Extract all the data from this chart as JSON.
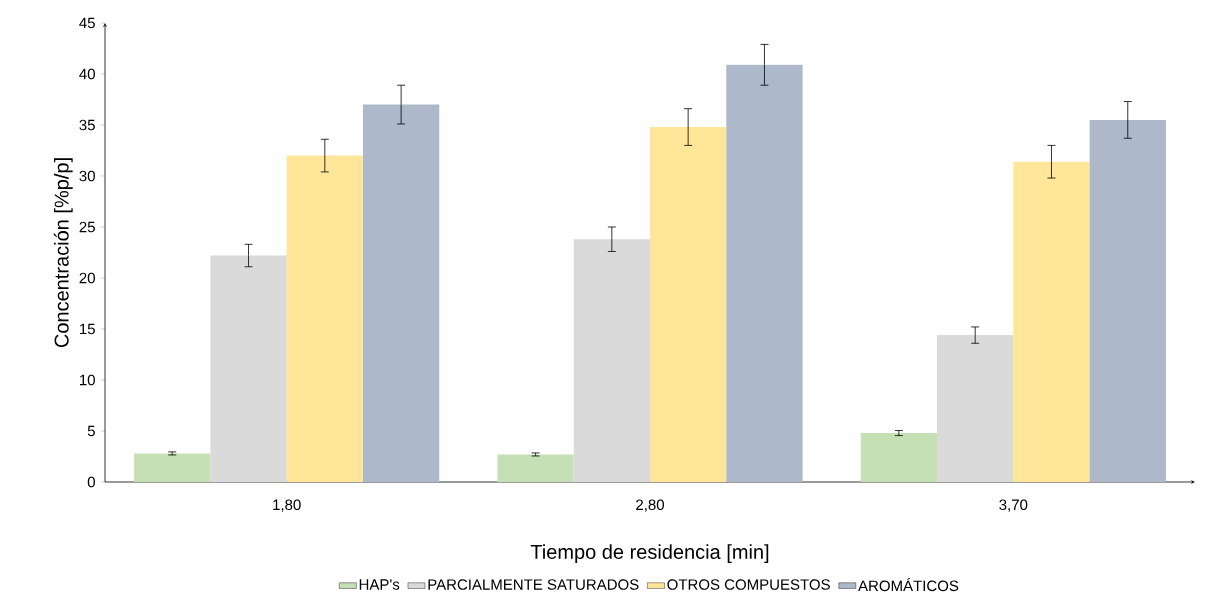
{
  "chart_data": {
    "type": "bar",
    "xlabel": "Tiempo de residencia [min]",
    "ylabel": "Concentración [%p/p]",
    "categories": [
      "1,80",
      "2,80",
      "3,70"
    ],
    "series": [
      {
        "name": "HAP's",
        "color": "#c5e0b4",
        "values": [
          2.8,
          2.7,
          4.8
        ],
        "errors": [
          0.15,
          0.15,
          0.25
        ]
      },
      {
        "name": "PARCIALMENTE SATURADOS",
        "color": "#dadada",
        "values": [
          22.2,
          23.8,
          14.4
        ],
        "errors": [
          1.1,
          1.2,
          0.8
        ]
      },
      {
        "name": "OTROS COMPUESTOS",
        "color": "#ffe699",
        "values": [
          32.0,
          34.8,
          31.4
        ],
        "errors": [
          1.6,
          1.8,
          1.6
        ]
      },
      {
        "name": "AROMÁTICOS",
        "color": "#adb9ca",
        "values": [
          37.0,
          40.9,
          35.5
        ],
        "errors": [
          1.9,
          2.0,
          1.8
        ]
      }
    ],
    "ylim": [
      0,
      45
    ],
    "yticks": [
      0,
      5,
      10,
      15,
      20,
      25,
      30,
      35,
      40,
      45
    ],
    "grid": false,
    "legend": "bottom"
  }
}
